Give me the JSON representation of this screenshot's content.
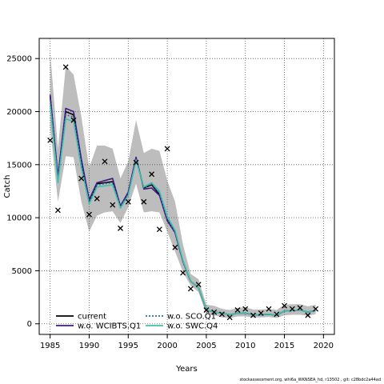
{
  "chart_data": {
    "type": "line",
    "xlabel": "Years",
    "ylabel": "Catch",
    "xlim": [
      1983.6,
      2021.4
    ],
    "ylim": [
      -1000,
      26900
    ],
    "x_ticks": [
      1985,
      1990,
      1995,
      2000,
      2005,
      2010,
      2015,
      2020
    ],
    "y_ticks": [
      0,
      5000,
      10000,
      15000,
      20000,
      25000
    ],
    "grid": true,
    "years": [
      1985,
      1986,
      1987,
      1988,
      1989,
      1990,
      1991,
      1992,
      1993,
      1994,
      1995,
      1996,
      1997,
      1998,
      1999,
      2000,
      2001,
      2002,
      2003,
      2004,
      2005,
      2006,
      2007,
      2008,
      2009,
      2010,
      2011,
      2012,
      2013,
      2014,
      2015,
      2016,
      2017,
      2018,
      2019
    ],
    "band": {
      "upper": [
        25700,
        16500,
        24300,
        23500,
        19500,
        14700,
        16800,
        16800,
        16500,
        13700,
        15300,
        19200,
        16100,
        16500,
        16300,
        13500,
        11500,
        7500,
        4700,
        4200,
        1800,
        1700,
        1400,
        1300,
        1500,
        1550,
        1350,
        1350,
        1400,
        1300,
        1800,
        1850,
        1850,
        1650,
        1800
      ],
      "lower": [
        18500,
        11500,
        15800,
        15700,
        11500,
        8700,
        10200,
        10500,
        10600,
        9500,
        11000,
        13200,
        10500,
        10600,
        10500,
        8700,
        6800,
        4900,
        3600,
        3000,
        900,
        800,
        600,
        550,
        700,
        700,
        600,
        600,
        650,
        550,
        800,
        850,
        850,
        750,
        900
      ]
    },
    "series": [
      {
        "name": "current",
        "color": "#000000",
        "dash": "solid",
        "values": [
          21500,
          13700,
          20000,
          19700,
          15200,
          11500,
          13200,
          13300,
          13400,
          11100,
          12300,
          15600,
          12800,
          13100,
          12200,
          9800,
          8600,
          5900,
          4000,
          3400,
          1300,
          1100,
          1000,
          850,
          1000,
          1000,
          850,
          850,
          900,
          800,
          1200,
          1250,
          1300,
          1100,
          1250
        ]
      },
      {
        "name": "w.o. WCIBTS.Q1",
        "color": "#3f1a82",
        "dash": "solid",
        "values": [
          21600,
          13900,
          20300,
          20000,
          15500,
          11700,
          13300,
          13500,
          13700,
          11100,
          12400,
          15700,
          12700,
          12800,
          12100,
          9700,
          8600,
          5900,
          4000,
          3400,
          1300,
          1100,
          1000,
          850,
          1000,
          1000,
          850,
          850,
          900,
          800,
          1200,
          1250,
          1300,
          1100,
          1250
        ]
      },
      {
        "name": "w.o. SCO.Q1",
        "color": "#2f6fa8",
        "dash": "dotted",
        "values": [
          21100,
          13600,
          19700,
          19500,
          15000,
          11400,
          13100,
          13200,
          13300,
          11000,
          12200,
          15500,
          12800,
          13200,
          12300,
          9900,
          8700,
          5900,
          4000,
          3400,
          1300,
          1100,
          1000,
          850,
          1000,
          1000,
          850,
          850,
          900,
          800,
          1200,
          1250,
          1300,
          1100,
          1250
        ]
      },
      {
        "name": "w.o. SWC.Q4",
        "color": "#3fbfae",
        "dash": "solid",
        "values": [
          20600,
          13300,
          19300,
          19100,
          14700,
          11300,
          12900,
          13000,
          13100,
          10900,
          12100,
          15400,
          12900,
          13300,
          12500,
          10100,
          8800,
          6000,
          4000,
          3400,
          1300,
          1100,
          1000,
          850,
          1000,
          1000,
          850,
          850,
          900,
          800,
          1200,
          1250,
          1300,
          1100,
          1250
        ]
      }
    ],
    "observed": {
      "marker": "x",
      "x": [
        1985,
        1986,
        1987,
        1988,
        1989,
        1990,
        1991,
        1992,
        1993,
        1994,
        1995,
        1996,
        1997,
        1998,
        1999,
        2000,
        2001,
        2002,
        2003,
        2004,
        2005,
        2006,
        2007,
        2008,
        2009,
        2010,
        2011,
        2012,
        2013,
        2014,
        2015,
        2016,
        2017,
        2018,
        2019
      ],
      "y": [
        17300,
        10700,
        24200,
        19200,
        13700,
        10300,
        11800,
        15300,
        11200,
        9000,
        11500,
        15200,
        11500,
        14100,
        8900,
        16500,
        7200,
        4800,
        3300,
        3700,
        1300,
        1100,
        900,
        600,
        1300,
        1400,
        800,
        1000,
        1400,
        900,
        1700,
        1400,
        1500,
        800,
        1400
      ]
    },
    "legend": {
      "position": "bottom-left",
      "entries": [
        "current",
        "w.o. SCO.Q1",
        "w.o. WCIBTS.Q1",
        "w.o. SWC.Q4"
      ]
    }
  },
  "footer": "stockassessment.org, whi6a_WKNSEA_hd, r13502 , git: c28bdc2a44ad"
}
